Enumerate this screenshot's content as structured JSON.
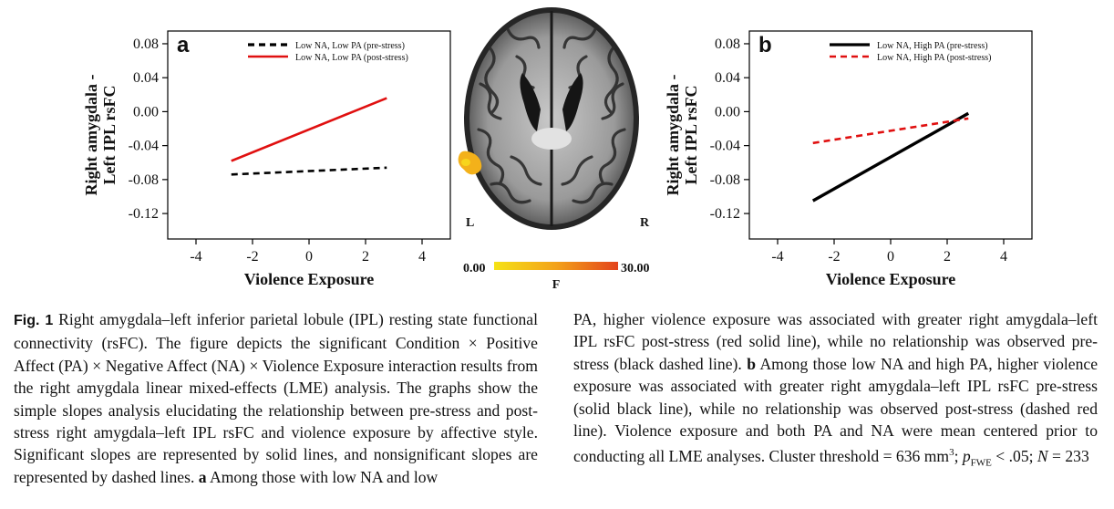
{
  "chart_data": [
    {
      "type": "line",
      "panel_label": "a",
      "title": "",
      "xlabel": "Violence Exposure",
      "ylabel_line1": "Right amygdala -",
      "ylabel_line2": "Left IPL rsFC",
      "xlim": [
        -5,
        5
      ],
      "ylim": [
        -0.15,
        0.095
      ],
      "x_ticks": [
        -4,
        -2,
        0,
        2,
        4
      ],
      "x_tick_labels": [
        "-4",
        "-2",
        "0",
        "2",
        "4"
      ],
      "y_ticks": [
        0.08,
        0.04,
        0.0,
        -0.04,
        -0.08,
        -0.12
      ],
      "y_tick_labels": [
        "0.08",
        "0.04",
        "0.00",
        "-0.04",
        "-0.08",
        "-0.12"
      ],
      "grid": false,
      "legend_position": "top-right",
      "series": [
        {
          "name": "Low NA, Low PA (pre-stress)",
          "x": [
            -2.75,
            2.75
          ],
          "y": [
            -0.074,
            -0.066
          ],
          "color": "#000000",
          "style": "dashed"
        },
        {
          "name": "Low NA, Low PA (post-stress)",
          "x": [
            -2.75,
            2.75
          ],
          "y": [
            -0.058,
            0.016
          ],
          "color": "#e01010",
          "style": "solid"
        }
      ]
    },
    {
      "type": "line",
      "panel_label": "b",
      "title": "",
      "xlabel": "Violence Exposure",
      "ylabel_line1": "Right amygdala -",
      "ylabel_line2": "Left IPL rsFC",
      "xlim": [
        -5,
        5
      ],
      "ylim": [
        -0.15,
        0.095
      ],
      "x_ticks": [
        -4,
        -2,
        0,
        2,
        4
      ],
      "x_tick_labels": [
        "-4",
        "-2",
        "0",
        "2",
        "4"
      ],
      "y_ticks": [
        0.08,
        0.04,
        0.0,
        -0.04,
        -0.08,
        -0.12
      ],
      "y_tick_labels": [
        "0.08",
        "0.04",
        "0.00",
        "-0.04",
        "-0.08",
        "-0.12"
      ],
      "grid": false,
      "legend_position": "top-right",
      "series": [
        {
          "name": "Low NA, High PA (pre-stress)",
          "x": [
            -2.75,
            2.75
          ],
          "y": [
            -0.105,
            -0.002
          ],
          "color": "#000000",
          "style": "solid"
        },
        {
          "name": "Low NA, High PA (post-stress)",
          "x": [
            -2.75,
            2.75
          ],
          "y": [
            -0.037,
            -0.008
          ],
          "color": "#e01010",
          "style": "dashed"
        }
      ]
    }
  ],
  "brain": {
    "left_label": "L",
    "right_label": "R",
    "colorbar_min": "0.00",
    "colorbar_max": "30.00",
    "colorbar_label": "F",
    "colorbar_colors": [
      "#f5e216",
      "#f3a21a",
      "#e3431b"
    ]
  },
  "caption": {
    "fig_label": "Fig. 1",
    "left_text": "Right amygdala–left inferior parietal lobule (IPL) resting state functional connectivity (rsFC). The figure depicts the significant Condition × Positive Affect (PA) × Negative Affect (NA) × Violence Exposure interaction results from the right amygdala linear mixed-effects (LME) analysis. The graphs show the simple slopes analysis elucidating the relationship between pre-stress and post-stress right amygdala–left IPL rsFC and violence exposure by affective style. Significant slopes are represented by solid lines, and nonsignificant slopes are represented by dashed lines.",
    "left_bold_a": "a",
    "left_tail": "Among those with low NA and low",
    "right_text1": "PA, higher violence exposure was associated with greater right amygdala–left IPL rsFC post-stress (red solid line), while no relationship was observed pre-stress (black dashed line).",
    "right_bold_b": "b",
    "right_text2": "Among those low NA and high PA, higher violence exposure was associated with greater right amygdala–left IPL rsFC pre-stress (solid black line), while no relationship was observed post-stress (dashed red line). Violence exposure and both PA and NA were mean centered prior to conducting all LME analyses. Cluster threshold = 636 mm",
    "right_sup": "3",
    "right_sep": "; ",
    "p_letter": "p",
    "p_sub": "FWE",
    "p_rest": " < .05; ",
    "n_letter": "N",
    "n_rest": " = 233"
  }
}
